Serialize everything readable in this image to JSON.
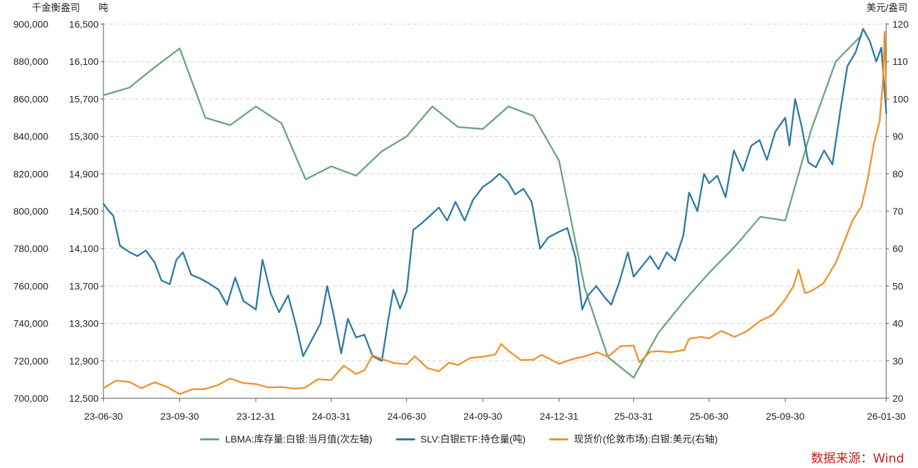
{
  "axes": {
    "left_outer_unit": "千金衡盎司",
    "left_inner_unit": "吨",
    "right_unit": "美元/盎司"
  },
  "source_text": "数据来源：Wind",
  "colors": {
    "LBMA": "#6aa67a",
    "SLV": "#2e7aa5",
    "spot": "#f29129",
    "grid": "#d0d0d0",
    "source": "#c81e1e"
  },
  "chart_data": {
    "type": "line",
    "title": "",
    "x_tick_labels": [
      "23-06-30",
      "23-09-30",
      "23-12-31",
      "24-03-31",
      "24-06-30",
      "24-09-30",
      "24-12-31",
      "25-03-31",
      "25-06-30",
      "25-09-30",
      "26-01-30"
    ],
    "x_ticks": [
      "2023-06-30",
      "2023-09-30",
      "2023-12-31",
      "2024-03-31",
      "2024-06-30",
      "2024-09-30",
      "2024-12-31",
      "2025-03-31",
      "2025-06-30",
      "2025-09-30",
      "2026-01-30"
    ],
    "x_range": [
      "2023-06-30",
      "2026-01-30"
    ],
    "y_left_outer": {
      "ticks": [
        "700,000",
        "720,000",
        "740,000",
        "760,000",
        "780,000",
        "800,000",
        "820,000",
        "840,000",
        "860,000",
        "880,000",
        "900,000"
      ],
      "range": [
        700000,
        900000
      ]
    },
    "y_left_inner": {
      "ticks": [
        "12,500",
        "12,900",
        "13,300",
        "13,700",
        "14,100",
        "14,500",
        "14,900",
        "15,300",
        "15,700",
        "16,100",
        "16,500"
      ],
      "range": [
        12500,
        16500
      ]
    },
    "y_right": {
      "ticks": [
        "20",
        "30",
        "40",
        "50",
        "60",
        "70",
        "80",
        "90",
        "100",
        "110",
        "120"
      ],
      "range": [
        20,
        120
      ]
    },
    "grid": "horizontal dashed",
    "legend_position": "bottom",
    "series": [
      {
        "name": "LBMA:库存量:白银:当月值(次左轴)",
        "axis": "left_outer",
        "points": [
          [
            "2023-06-30",
            862000
          ],
          [
            "2023-07-31",
            866000
          ],
          [
            "2023-08-31",
            877000
          ],
          [
            "2023-09-30",
            887000
          ],
          [
            "2023-10-31",
            850000
          ],
          [
            "2023-11-30",
            846000
          ],
          [
            "2023-12-31",
            856000
          ],
          [
            "2024-01-31",
            847000
          ],
          [
            "2024-02-29",
            817000
          ],
          [
            "2024-03-31",
            824000
          ],
          [
            "2024-04-30",
            819000
          ],
          [
            "2024-05-31",
            832000
          ],
          [
            "2024-06-30",
            840000
          ],
          [
            "2024-07-31",
            856000
          ],
          [
            "2024-08-31",
            845000
          ],
          [
            "2024-09-30",
            844000
          ],
          [
            "2024-10-31",
            856000
          ],
          [
            "2024-11-30",
            851000
          ],
          [
            "2024-12-31",
            827000
          ],
          [
            "2025-01-31",
            759000
          ],
          [
            "2025-02-28",
            722000
          ],
          [
            "2025-03-31",
            711000
          ],
          [
            "2025-04-30",
            735000
          ],
          [
            "2025-05-31",
            752000
          ],
          [
            "2025-06-30",
            767000
          ],
          [
            "2025-07-31",
            781000
          ],
          [
            "2025-08-31",
            797000
          ],
          [
            "2025-09-30",
            795000
          ],
          [
            "2025-10-31",
            843000
          ],
          [
            "2025-11-30",
            880000
          ],
          [
            "2025-12-31",
            894000
          ]
        ]
      },
      {
        "name": "SLV:白银ETF:持仓量(吨)",
        "axis": "left_inner",
        "points": [
          [
            "2023-06-30",
            14580
          ],
          [
            "2023-07-05",
            14520
          ],
          [
            "2023-07-12",
            14450
          ],
          [
            "2023-07-20",
            14130
          ],
          [
            "2023-08-01",
            14060
          ],
          [
            "2023-08-10",
            14020
          ],
          [
            "2023-08-20",
            14080
          ],
          [
            "2023-08-31",
            13950
          ],
          [
            "2023-09-08",
            13760
          ],
          [
            "2023-09-18",
            13720
          ],
          [
            "2023-09-26",
            13980
          ],
          [
            "2023-10-04",
            14060
          ],
          [
            "2023-10-14",
            13820
          ],
          [
            "2023-10-25",
            13780
          ],
          [
            "2023-11-06",
            13720
          ],
          [
            "2023-11-16",
            13660
          ],
          [
            "2023-11-26",
            13500
          ],
          [
            "2023-12-06",
            13790
          ],
          [
            "2023-12-16",
            13540
          ],
          [
            "2023-12-31",
            13450
          ],
          [
            "2024-01-08",
            13980
          ],
          [
            "2024-01-18",
            13620
          ],
          [
            "2024-01-28",
            13420
          ],
          [
            "2024-02-08",
            13600
          ],
          [
            "2024-02-18",
            13260
          ],
          [
            "2024-02-26",
            12950
          ],
          [
            "2024-03-06",
            13100
          ],
          [
            "2024-03-18",
            13300
          ],
          [
            "2024-03-26",
            13700
          ],
          [
            "2024-04-02",
            13430
          ],
          [
            "2024-04-12",
            12980
          ],
          [
            "2024-04-20",
            13350
          ],
          [
            "2024-04-30",
            13150
          ],
          [
            "2024-05-10",
            13180
          ],
          [
            "2024-05-20",
            12950
          ],
          [
            "2024-05-31",
            12900
          ],
          [
            "2024-06-08",
            13350
          ],
          [
            "2024-06-14",
            13660
          ],
          [
            "2024-06-22",
            13460
          ],
          [
            "2024-06-30",
            13640
          ],
          [
            "2024-07-08",
            14300
          ],
          [
            "2024-07-18",
            14370
          ],
          [
            "2024-07-28",
            14450
          ],
          [
            "2024-08-08",
            14540
          ],
          [
            "2024-08-18",
            14400
          ],
          [
            "2024-08-28",
            14600
          ],
          [
            "2024-09-08",
            14400
          ],
          [
            "2024-09-18",
            14620
          ],
          [
            "2024-09-30",
            14760
          ],
          [
            "2024-10-10",
            14820
          ],
          [
            "2024-10-20",
            14900
          ],
          [
            "2024-10-30",
            14820
          ],
          [
            "2024-11-08",
            14680
          ],
          [
            "2024-11-18",
            14740
          ],
          [
            "2024-11-28",
            14600
          ],
          [
            "2024-12-08",
            14100
          ],
          [
            "2024-12-18",
            14220
          ],
          [
            "2024-12-31",
            14280
          ],
          [
            "2025-01-10",
            14320
          ],
          [
            "2025-01-20",
            14000
          ],
          [
            "2025-01-28",
            13450
          ],
          [
            "2025-02-04",
            13600
          ],
          [
            "2025-02-14",
            13700
          ],
          [
            "2025-02-24",
            13580
          ],
          [
            "2025-03-04",
            13500
          ],
          [
            "2025-03-14",
            13750
          ],
          [
            "2025-03-24",
            14060
          ],
          [
            "2025-03-31",
            13800
          ],
          [
            "2025-04-10",
            13910
          ],
          [
            "2025-04-20",
            14020
          ],
          [
            "2025-04-30",
            13880
          ],
          [
            "2025-05-10",
            14060
          ],
          [
            "2025-05-20",
            13970
          ],
          [
            "2025-05-30",
            14240
          ],
          [
            "2025-06-06",
            14700
          ],
          [
            "2025-06-16",
            14500
          ],
          [
            "2025-06-24",
            14900
          ],
          [
            "2025-06-30",
            14800
          ],
          [
            "2025-07-10",
            14880
          ],
          [
            "2025-07-20",
            14650
          ],
          [
            "2025-07-30",
            15150
          ],
          [
            "2025-08-10",
            14930
          ],
          [
            "2025-08-20",
            15200
          ],
          [
            "2025-08-30",
            15260
          ],
          [
            "2025-09-08",
            15050
          ],
          [
            "2025-09-18",
            15350
          ],
          [
            "2025-09-30",
            15500
          ],
          [
            "2025-10-05",
            15200
          ],
          [
            "2025-10-12",
            15700
          ],
          [
            "2025-10-20",
            15400
          ],
          [
            "2025-10-28",
            15020
          ],
          [
            "2025-11-06",
            14970
          ],
          [
            "2025-11-16",
            15150
          ],
          [
            "2025-11-26",
            15000
          ],
          [
            "2025-12-06",
            15600
          ],
          [
            "2025-12-14",
            16050
          ],
          [
            "2025-12-24",
            16200
          ],
          [
            "2026-01-02",
            16450
          ],
          [
            "2026-01-10",
            16320
          ],
          [
            "2026-01-18",
            16100
          ],
          [
            "2026-01-24",
            16250
          ],
          [
            "2026-01-30",
            15550
          ]
        ]
      },
      {
        "name": "现货价(伦敦市场):白银:美元(右轴)",
        "axis": "right",
        "points": [
          [
            "2023-06-30",
            22.7
          ],
          [
            "2023-07-15",
            24.7
          ],
          [
            "2023-07-31",
            24.4
          ],
          [
            "2023-08-15",
            22.7
          ],
          [
            "2023-08-31",
            24.3
          ],
          [
            "2023-09-15",
            23.0
          ],
          [
            "2023-09-30",
            21.1
          ],
          [
            "2023-10-15",
            22.4
          ],
          [
            "2023-10-31",
            22.5
          ],
          [
            "2023-11-15",
            23.5
          ],
          [
            "2023-11-30",
            25.3
          ],
          [
            "2023-12-15",
            24.1
          ],
          [
            "2023-12-31",
            23.8
          ],
          [
            "2024-01-15",
            22.9
          ],
          [
            "2024-01-31",
            23.0
          ],
          [
            "2024-02-15",
            22.6
          ],
          [
            "2024-02-28",
            22.8
          ],
          [
            "2024-03-15",
            25.1
          ],
          [
            "2024-03-31",
            24.9
          ],
          [
            "2024-04-15",
            28.7
          ],
          [
            "2024-04-30",
            26.5
          ],
          [
            "2024-05-10",
            27.5
          ],
          [
            "2024-05-20",
            31.5
          ],
          [
            "2024-05-31",
            30.5
          ],
          [
            "2024-06-15",
            29.4
          ],
          [
            "2024-06-30",
            29.1
          ],
          [
            "2024-07-10",
            31.2
          ],
          [
            "2024-07-25",
            28.1
          ],
          [
            "2024-08-08",
            27.2
          ],
          [
            "2024-08-20",
            29.5
          ],
          [
            "2024-08-31",
            28.9
          ],
          [
            "2024-09-15",
            30.8
          ],
          [
            "2024-09-30",
            31.1
          ],
          [
            "2024-10-15",
            31.7
          ],
          [
            "2024-10-22",
            34.5
          ],
          [
            "2024-10-31",
            32.7
          ],
          [
            "2024-11-15",
            30.2
          ],
          [
            "2024-11-30",
            30.3
          ],
          [
            "2024-12-10",
            31.6
          ],
          [
            "2024-12-31",
            29.2
          ],
          [
            "2025-01-15",
            30.4
          ],
          [
            "2025-01-31",
            31.2
          ],
          [
            "2025-02-15",
            32.3
          ],
          [
            "2025-02-28",
            31.1
          ],
          [
            "2025-03-15",
            33.9
          ],
          [
            "2025-03-31",
            34.1
          ],
          [
            "2025-04-07",
            29.6
          ],
          [
            "2025-04-20",
            32.4
          ],
          [
            "2025-04-30",
            32.6
          ],
          [
            "2025-05-15",
            32.3
          ],
          [
            "2025-05-31",
            32.9
          ],
          [
            "2025-06-06",
            35.9
          ],
          [
            "2025-06-20",
            36.4
          ],
          [
            "2025-06-30",
            36.0
          ],
          [
            "2025-07-15",
            38.0
          ],
          [
            "2025-07-31",
            36.4
          ],
          [
            "2025-08-15",
            38.0
          ],
          [
            "2025-08-31",
            40.7
          ],
          [
            "2025-09-15",
            42.3
          ],
          [
            "2025-09-30",
            46.4
          ],
          [
            "2025-10-10",
            50.0
          ],
          [
            "2025-10-16",
            54.4
          ],
          [
            "2025-10-24",
            48.1
          ],
          [
            "2025-10-31",
            48.6
          ],
          [
            "2025-11-15",
            50.7
          ],
          [
            "2025-11-30",
            56.2
          ],
          [
            "2025-12-10",
            61.7
          ],
          [
            "2025-12-20",
            67.4
          ],
          [
            "2025-12-31",
            71.3
          ],
          [
            "2026-01-08",
            79.0
          ],
          [
            "2026-01-15",
            88.0
          ],
          [
            "2026-01-22",
            94.0
          ],
          [
            "2026-01-26",
            105.0
          ],
          [
            "2026-01-28",
            118.0
          ],
          [
            "2026-01-30",
            100.0
          ]
        ]
      }
    ]
  }
}
